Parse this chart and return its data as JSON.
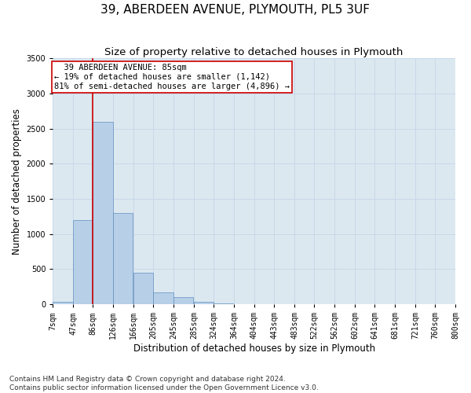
{
  "title": "39, ABERDEEN AVENUE, PLYMOUTH, PL5 3UF",
  "subtitle": "Size of property relative to detached houses in Plymouth",
  "xlabel": "Distribution of detached houses by size in Plymouth",
  "ylabel": "Number of detached properties",
  "footnote1": "Contains HM Land Registry data © Crown copyright and database right 2024.",
  "footnote2": "Contains public sector information licensed under the Open Government Licence v3.0.",
  "annotation_line1": "  39 ABERDEEN AVENUE: 85sqm",
  "annotation_line2": "← 19% of detached houses are smaller (1,142)",
  "annotation_line3": "81% of semi-detached houses are larger (4,896) →",
  "property_size": 85,
  "bar_left_edges": [
    7,
    47,
    86,
    126,
    166,
    205,
    245,
    285,
    324,
    364,
    404,
    443,
    483,
    522,
    562,
    602,
    641,
    681,
    721,
    760
  ],
  "bar_widths": [
    39,
    39,
    39,
    39,
    39,
    39,
    39,
    39,
    39,
    39,
    39,
    39,
    39,
    39,
    39,
    39,
    39,
    39,
    39,
    39
  ],
  "bar_heights": [
    40,
    1200,
    2600,
    1300,
    450,
    175,
    100,
    30,
    10,
    5,
    2,
    1,
    1,
    0,
    0,
    0,
    0,
    0,
    0,
    0
  ],
  "bin_labels": [
    "7sqm",
    "47sqm",
    "86sqm",
    "126sqm",
    "166sqm",
    "205sqm",
    "245sqm",
    "285sqm",
    "324sqm",
    "364sqm",
    "404sqm",
    "443sqm",
    "483sqm",
    "522sqm",
    "562sqm",
    "602sqm",
    "641sqm",
    "681sqm",
    "721sqm",
    "760sqm",
    "800sqm"
  ],
  "bar_color": "#b8cfe8",
  "bar_edge_color": "#6090c0",
  "vline_color": "#cc0000",
  "vline_x": 86,
  "annotation_box_color": "#cc0000",
  "ylim": [
    0,
    3500
  ],
  "xlim": [
    7,
    800
  ],
  "grid_color": "#c8d8e8",
  "bg_color": "#dce8f0",
  "title_fontsize": 11,
  "subtitle_fontsize": 9.5,
  "axis_label_fontsize": 8.5,
  "tick_fontsize": 7,
  "annotation_fontsize": 7.5,
  "footnote_fontsize": 6.5
}
